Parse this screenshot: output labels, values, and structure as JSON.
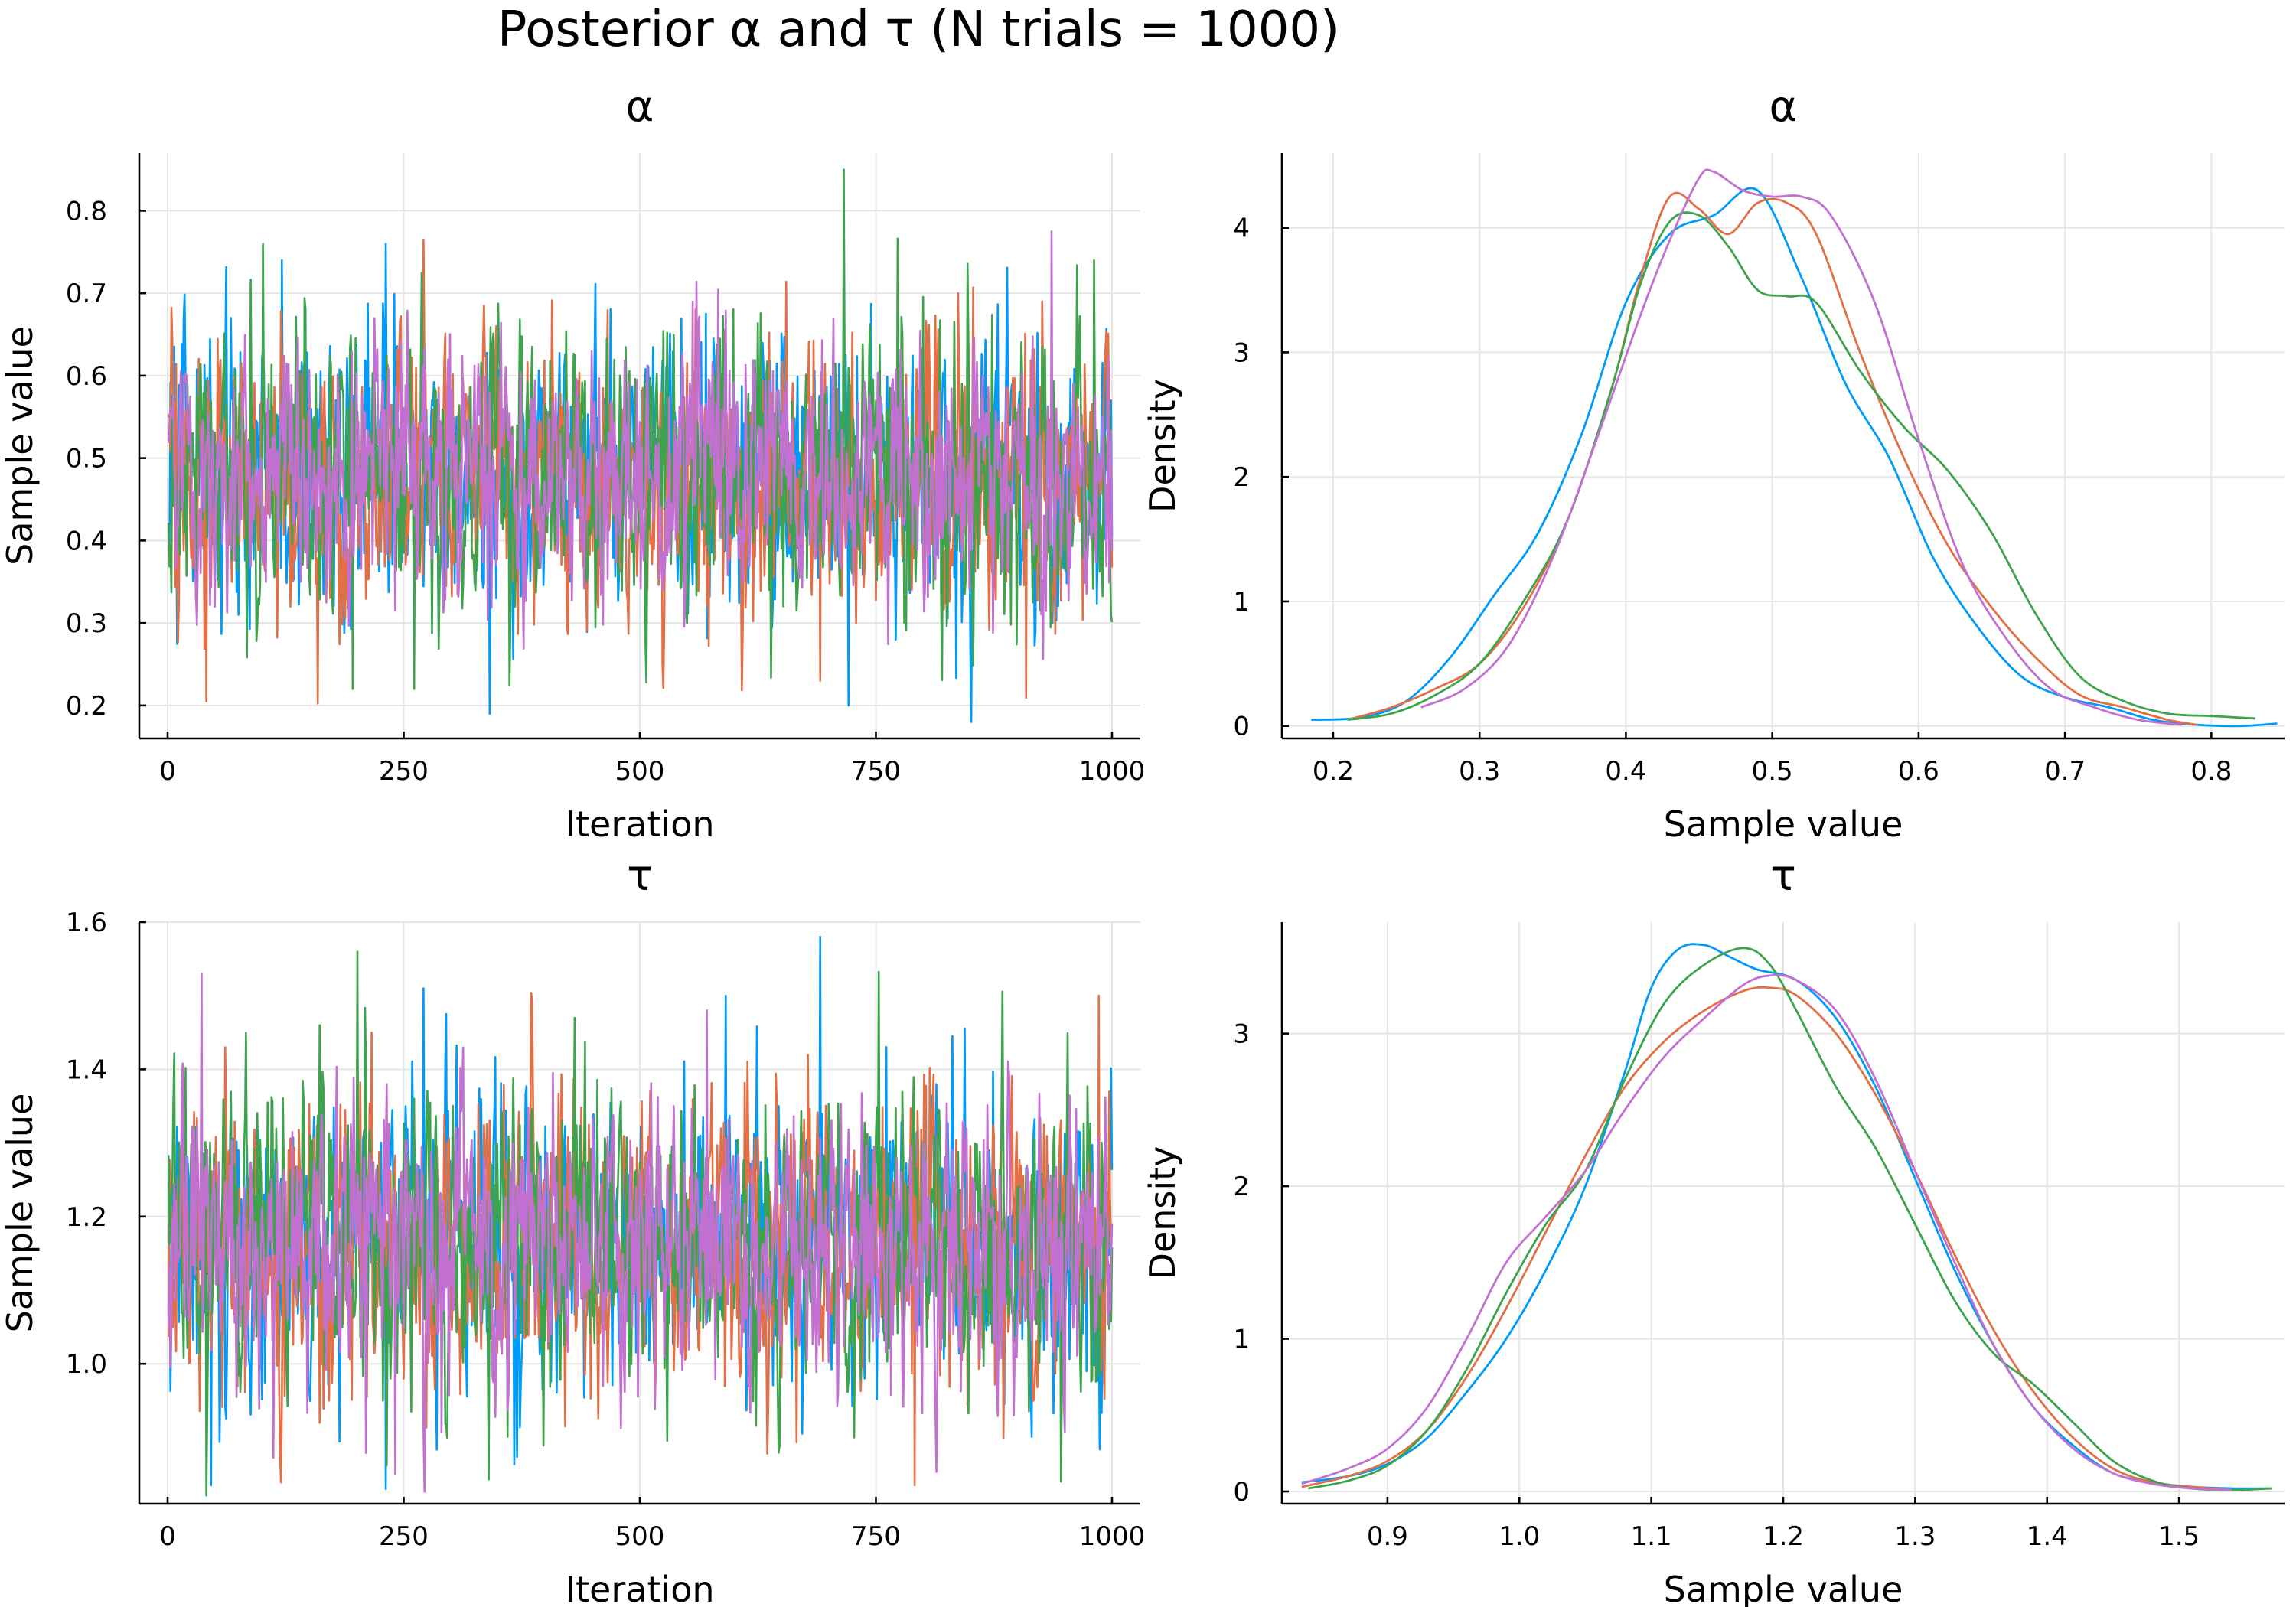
{
  "figure": {
    "title": "Posterior α and τ (N trials = 1000)"
  },
  "colors": {
    "chain1": "#009af9",
    "chain2": "#e26f46",
    "chain3": "#3da44d",
    "chain4": "#c271d2"
  },
  "chart_data": [
    {
      "id": "alpha-trace",
      "type": "line",
      "title": "α",
      "xlabel": "Iteration",
      "ylabel": "Sample value",
      "xlim": [
        -30,
        1030
      ],
      "ylim": [
        0.16,
        0.87
      ],
      "xticks": [
        0,
        250,
        500,
        750,
        1000
      ],
      "xtick_labels": [
        "0",
        "250",
        "500",
        "750",
        "1000"
      ],
      "yticks": [
        0.2,
        0.3,
        0.4,
        0.5,
        0.6,
        0.7,
        0.8
      ],
      "ytick_labels": [
        "0.2",
        "0.3",
        "0.4",
        "0.5",
        "0.6",
        "0.7",
        "0.8"
      ],
      "grid": true,
      "legend": "none",
      "n_iterations": 1000,
      "series": [
        {
          "mean": 0.48,
          "sd": 0.085,
          "spikes": [
            [
              850,
              0.18
            ],
            [
              340,
              0.19
            ],
            [
              720,
              0.2
            ],
            [
              120,
              0.74
            ],
            [
              230,
              0.76
            ]
          ]
        },
        {
          "mean": 0.48,
          "sd": 0.085,
          "spikes": [
            [
              40,
              0.205
            ],
            [
              270,
              0.765
            ],
            [
              690,
              0.23
            ],
            [
              925,
              0.69
            ]
          ]
        },
        {
          "mean": 0.48,
          "sd": 0.085,
          "spikes": [
            [
              715,
              0.85
            ],
            [
              100,
              0.76
            ],
            [
              195,
              0.22
            ],
            [
              980,
              0.74
            ],
            [
              260,
              0.22
            ]
          ]
        },
        {
          "mean": 0.48,
          "sd": 0.075,
          "spikes": [
            [
              935,
              0.775
            ],
            [
              555,
              0.69
            ]
          ]
        }
      ]
    },
    {
      "id": "alpha-density",
      "type": "line",
      "title": "α",
      "xlabel": "Sample value",
      "ylabel": "Density",
      "xlim": [
        0.165,
        0.85
      ],
      "ylim": [
        -0.1,
        4.6
      ],
      "xticks": [
        0.2,
        0.3,
        0.4,
        0.5,
        0.6,
        0.7,
        0.8
      ],
      "xtick_labels": [
        "0.2",
        "0.3",
        "0.4",
        "0.5",
        "0.6",
        "0.7",
        "0.8"
      ],
      "yticks": [
        0,
        1,
        2,
        3,
        4
      ],
      "ytick_labels": [
        "0",
        "1",
        "2",
        "3",
        "4"
      ],
      "grid": true,
      "legend": "none",
      "series": [
        {
          "x": [
            0.185,
            0.22,
            0.25,
            0.28,
            0.31,
            0.34,
            0.37,
            0.4,
            0.43,
            0.46,
            0.49,
            0.52,
            0.55,
            0.58,
            0.61,
            0.64,
            0.67,
            0.7,
            0.73,
            0.76,
            0.79,
            0.82,
            0.845
          ],
          "y": [
            0.05,
            0.07,
            0.2,
            0.55,
            1.05,
            1.55,
            2.35,
            3.4,
            3.95,
            4.1,
            4.3,
            3.6,
            2.75,
            2.15,
            1.35,
            0.8,
            0.4,
            0.23,
            0.15,
            0.05,
            0.01,
            0.0,
            0.02
          ]
        },
        {
          "x": [
            0.21,
            0.24,
            0.27,
            0.3,
            0.33,
            0.36,
            0.39,
            0.41,
            0.43,
            0.45,
            0.47,
            0.49,
            0.51,
            0.53,
            0.56,
            0.59,
            0.62,
            0.65,
            0.68,
            0.71,
            0.74,
            0.77,
            0.79
          ],
          "y": [
            0.05,
            0.15,
            0.3,
            0.5,
            0.95,
            1.65,
            2.7,
            3.6,
            4.25,
            4.15,
            3.95,
            4.2,
            4.2,
            3.95,
            3.0,
            2.15,
            1.45,
            0.95,
            0.55,
            0.25,
            0.15,
            0.05,
            0.01
          ]
        },
        {
          "x": [
            0.21,
            0.24,
            0.27,
            0.3,
            0.33,
            0.36,
            0.39,
            0.41,
            0.43,
            0.45,
            0.47,
            0.49,
            0.51,
            0.53,
            0.56,
            0.59,
            0.62,
            0.65,
            0.68,
            0.71,
            0.74,
            0.77,
            0.8,
            0.83
          ],
          "y": [
            0.05,
            0.1,
            0.25,
            0.5,
            1.0,
            1.65,
            2.7,
            3.55,
            4.05,
            4.1,
            3.85,
            3.5,
            3.45,
            3.4,
            2.85,
            2.4,
            2.05,
            1.55,
            0.9,
            0.4,
            0.2,
            0.1,
            0.08,
            0.06
          ]
        },
        {
          "x": [
            0.26,
            0.29,
            0.32,
            0.35,
            0.38,
            0.41,
            0.43,
            0.45,
            0.46,
            0.48,
            0.5,
            0.52,
            0.54,
            0.57,
            0.6,
            0.63,
            0.66,
            0.69,
            0.72,
            0.75,
            0.78
          ],
          "y": [
            0.15,
            0.3,
            0.65,
            1.35,
            2.3,
            3.3,
            3.9,
            4.4,
            4.45,
            4.3,
            4.25,
            4.25,
            4.1,
            3.4,
            2.3,
            1.3,
            0.7,
            0.3,
            0.15,
            0.05,
            0.01
          ]
        }
      ]
    },
    {
      "id": "tau-trace",
      "type": "line",
      "title": "τ",
      "xlabel": "Iteration",
      "ylabel": "Sample value",
      "xlim": [
        -30,
        1030
      ],
      "ylim": [
        0.81,
        1.6
      ],
      "xticks": [
        0,
        250,
        500,
        750,
        1000
      ],
      "xtick_labels": [
        "0",
        "250",
        "500",
        "750",
        "1000"
      ],
      "yticks": [
        1.0,
        1.2,
        1.4,
        1.6
      ],
      "ytick_labels": [
        "1.0",
        "1.2",
        "1.4",
        "1.6"
      ],
      "grid": true,
      "legend": "none",
      "n_iterations": 1000,
      "series": [
        {
          "mean": 1.16,
          "sd": 0.1,
          "spikes": [
            [
              690,
              1.58
            ],
            [
              230,
              0.83
            ],
            [
              45,
              0.835
            ],
            [
              270,
              1.51
            ],
            [
              590,
              1.5
            ]
          ]
        },
        {
          "mean": 1.16,
          "sd": 0.1,
          "spikes": [
            [
              985,
              1.5
            ],
            [
              215,
              1.45
            ],
            [
              790,
              0.835
            ],
            [
              60,
              1.43
            ]
          ]
        },
        {
          "mean": 1.16,
          "sd": 0.1,
          "spikes": [
            [
              200,
              1.56
            ],
            [
              945,
              0.84
            ],
            [
              160,
              1.46
            ],
            [
              430,
              1.47
            ]
          ]
        },
        {
          "mean": 1.16,
          "sd": 0.095,
          "spikes": [
            [
              35,
              1.53
            ],
            [
              570,
              1.48
            ],
            [
              240,
              0.85
            ]
          ]
        }
      ]
    },
    {
      "id": "tau-density",
      "type": "line",
      "title": "τ",
      "xlabel": "Sample value",
      "ylabel": "Density",
      "xlim": [
        0.82,
        1.58
      ],
      "ylim": [
        -0.08,
        3.73
      ],
      "xticks": [
        0.9,
        1.0,
        1.1,
        1.2,
        1.3,
        1.4,
        1.5
      ],
      "xtick_labels": [
        "0.9",
        "1.0",
        "1.1",
        "1.2",
        "1.3",
        "1.4",
        "1.5"
      ],
      "yticks": [
        0,
        1,
        2,
        3
      ],
      "ytick_labels": [
        "0",
        "1",
        "2",
        "3"
      ],
      "grid": true,
      "legend": "none",
      "series": [
        {
          "x": [
            0.835,
            0.87,
            0.9,
            0.93,
            0.96,
            0.99,
            1.02,
            1.05,
            1.08,
            1.1,
            1.12,
            1.14,
            1.16,
            1.18,
            1.21,
            1.24,
            1.27,
            1.3,
            1.33,
            1.36,
            1.39,
            1.42,
            1.45,
            1.48,
            1.51,
            1.54,
            1.57
          ],
          "y": [
            0.06,
            0.1,
            0.18,
            0.35,
            0.65,
            1.0,
            1.45,
            2.0,
            2.75,
            3.3,
            3.55,
            3.58,
            3.5,
            3.42,
            3.35,
            3.1,
            2.65,
            2.05,
            1.45,
            0.95,
            0.55,
            0.3,
            0.12,
            0.06,
            0.03,
            0.02,
            0.02
          ]
        },
        {
          "x": [
            0.835,
            0.87,
            0.9,
            0.93,
            0.96,
            0.99,
            1.02,
            1.05,
            1.08,
            1.11,
            1.14,
            1.17,
            1.19,
            1.21,
            1.24,
            1.27,
            1.3,
            1.33,
            1.36,
            1.39,
            1.42,
            1.45,
            1.48,
            1.51,
            1.54
          ],
          "y": [
            0.03,
            0.1,
            0.2,
            0.4,
            0.75,
            1.2,
            1.7,
            2.2,
            2.65,
            2.95,
            3.15,
            3.28,
            3.3,
            3.25,
            3.0,
            2.6,
            2.1,
            1.55,
            1.05,
            0.65,
            0.35,
            0.15,
            0.06,
            0.03,
            0.01
          ]
        },
        {
          "x": [
            0.84,
            0.87,
            0.9,
            0.93,
            0.96,
            0.99,
            1.02,
            1.05,
            1.08,
            1.11,
            1.14,
            1.17,
            1.19,
            1.21,
            1.24,
            1.27,
            1.3,
            1.33,
            1.36,
            1.39,
            1.42,
            1.45,
            1.48,
            1.51,
            1.54,
            1.57
          ],
          "y": [
            0.02,
            0.07,
            0.17,
            0.4,
            0.8,
            1.3,
            1.75,
            2.1,
            2.7,
            3.2,
            3.45,
            3.56,
            3.45,
            3.15,
            2.65,
            2.25,
            1.75,
            1.25,
            0.9,
            0.7,
            0.45,
            0.2,
            0.07,
            0.02,
            0.01,
            0.02
          ]
        },
        {
          "x": [
            0.835,
            0.87,
            0.9,
            0.93,
            0.96,
            0.99,
            1.02,
            1.05,
            1.08,
            1.11,
            1.14,
            1.17,
            1.19,
            1.21,
            1.24,
            1.27,
            1.3,
            1.33,
            1.36,
            1.39,
            1.42,
            1.45,
            1.48,
            1.51,
            1.54
          ],
          "y": [
            0.05,
            0.15,
            0.28,
            0.55,
            1.0,
            1.5,
            1.8,
            2.1,
            2.5,
            2.85,
            3.1,
            3.32,
            3.38,
            3.35,
            3.15,
            2.7,
            2.1,
            1.5,
            0.95,
            0.55,
            0.28,
            0.12,
            0.05,
            0.02,
            0.01
          ]
        }
      ]
    }
  ]
}
